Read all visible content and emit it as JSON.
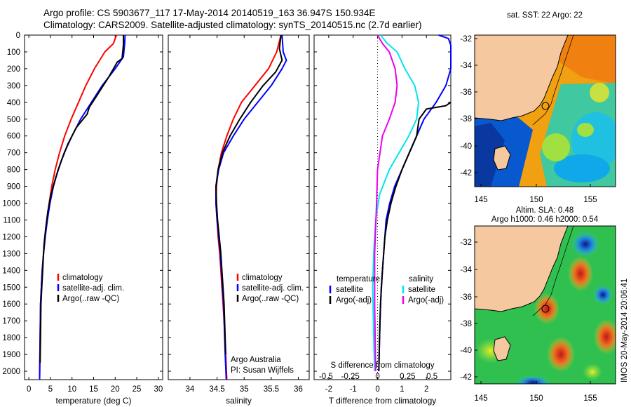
{
  "header": {
    "title_line1": "Argo profile: CS 5903677_117 17-May-2014 20140519_163 36.947S 150.934E",
    "title_line2": "Climatology: CARS2009. Satellite-adjusted climatology: synTS_20140515.nc (2.7d earlier)"
  },
  "colors": {
    "red": "#ff0000",
    "blue": "#0000ff",
    "black": "#000000",
    "cyan": "#00e5ee",
    "magenta": "#ee00ee",
    "land": "#f5c8a0"
  },
  "chart_data": [
    {
      "type": "line",
      "name": "temperature",
      "xlabel": "temperature (deg C)",
      "ylabel": "",
      "xlim": [
        -1,
        31
      ],
      "ylim": [
        2050,
        0
      ],
      "xticks": [
        "0",
        "5",
        "10",
        "15",
        "20",
        "25",
        "30"
      ],
      "yticks": [
        "0",
        "100",
        "200",
        "300",
        "400",
        "500",
        "600",
        "700",
        "800",
        "900",
        "1000",
        "1100",
        "1200",
        "1300",
        "1400",
        "1500",
        "1600",
        "1700",
        "1800",
        "1900",
        "2000"
      ],
      "legend": [
        "climatology",
        "satellite-adj. clim.",
        "Argo(..raw -QC)"
      ],
      "series": [
        {
          "name": "climatology",
          "color": "red",
          "x": [
            20.3,
            19.6,
            17.6,
            15.2,
            13.2,
            11.5,
            9.8,
            8.3,
            7.1,
            6.1,
            5.3,
            4.7,
            4.2,
            3.8,
            3.4,
            3.1,
            2.9,
            2.7,
            2.6,
            2.5
          ],
          "y": [
            0,
            50,
            100,
            200,
            300,
            400,
            500,
            600,
            700,
            800,
            900,
            1000,
            1100,
            1200,
            1300,
            1400,
            1500,
            1600,
            1800,
            2050
          ]
        },
        {
          "name": "satellite-adj. clim.",
          "color": "blue",
          "x": [
            22.3,
            22.2,
            21.9,
            20.0,
            17.0,
            14.5,
            12.0,
            10.0,
            8.2,
            6.8,
            5.7,
            4.9,
            4.3,
            3.8,
            3.4,
            3.1,
            2.9,
            2.7,
            2.6,
            2.5
          ],
          "y": [
            0,
            50,
            130,
            200,
            300,
            400,
            500,
            600,
            700,
            800,
            900,
            1000,
            1100,
            1200,
            1300,
            1400,
            1500,
            1600,
            1800,
            2050
          ]
        },
        {
          "name": "Argo",
          "color": "black",
          "x": [
            21.9,
            21.9,
            21.6,
            20.5,
            18.5,
            16.0,
            14.0,
            13.5,
            11.0,
            9.0,
            7.5,
            6.2,
            5.1,
            4.4,
            3.9,
            3.5,
            3.2,
            3.0,
            2.8,
            2.7,
            2.6
          ],
          "y": [
            0,
            60,
            140,
            160,
            250,
            350,
            430,
            470,
            550,
            650,
            750,
            850,
            950,
            1050,
            1150,
            1250,
            1400,
            1500,
            1600,
            1800,
            1950
          ]
        }
      ]
    },
    {
      "type": "line",
      "name": "salinity",
      "xlabel": "salinity",
      "xlim": [
        33.6,
        36.2
      ],
      "ylim": [
        2050,
        0
      ],
      "xticks": [
        "34",
        "34.5",
        "35",
        "35.5",
        "36"
      ],
      "legend": [
        "climatology",
        "satellite-adj. clim.",
        "Argo(..raw -QC)"
      ],
      "annotation": [
        "Argo Australia",
        "PI: Susan Wijffels"
      ],
      "series": [
        {
          "name": "climatology",
          "color": "red",
          "x": [
            35.68,
            35.6,
            35.45,
            35.2,
            34.95,
            34.8,
            34.68,
            34.58,
            34.52,
            34.49,
            34.48,
            34.5,
            34.52,
            34.55,
            34.57,
            34.59,
            34.61,
            34.63,
            34.66,
            34.68
          ],
          "y": [
            0,
            100,
            200,
            300,
            400,
            500,
            600,
            700,
            800,
            900,
            1000,
            1100,
            1200,
            1300,
            1400,
            1500,
            1600,
            1700,
            1900,
            2050
          ]
        },
        {
          "name": "satellite-adj. clim.",
          "color": "blue",
          "x": [
            35.7,
            35.72,
            35.78,
            35.7,
            35.5,
            35.25,
            35.0,
            34.8,
            34.62,
            34.53,
            34.48,
            34.48,
            34.5,
            34.53,
            34.56,
            34.58,
            34.6,
            34.62,
            34.65,
            34.67
          ],
          "y": [
            0,
            100,
            150,
            200,
            300,
            400,
            500,
            600,
            700,
            800,
            900,
            1000,
            1100,
            1200,
            1300,
            1400,
            1500,
            1600,
            1900,
            2050
          ]
        },
        {
          "name": "Argo",
          "color": "black",
          "x": [
            35.68,
            35.65,
            35.7,
            35.58,
            35.35,
            35.12,
            34.92,
            34.74,
            34.6,
            34.52,
            34.48,
            34.49,
            34.51,
            34.54,
            34.57,
            34.59,
            34.61,
            34.63,
            34.66
          ],
          "y": [
            0,
            80,
            150,
            220,
            300,
            400,
            500,
            600,
            700,
            800,
            900,
            1000,
            1100,
            1200,
            1300,
            1400,
            1500,
            1600,
            1900
          ]
        }
      ]
    },
    {
      "type": "line",
      "name": "difference",
      "xlabel": "T difference from climatology",
      "xlabel_top": "S difference from climatology",
      "xlim": [
        -2.6,
        3
      ],
      "ylim": [
        2050,
        0
      ],
      "xticks": [
        "-2",
        "-1",
        "0",
        "1",
        "2"
      ],
      "xticks_s": [
        "-0.5",
        "-0.25",
        "0",
        "0.25",
        "0.5"
      ],
      "legend_temperature": {
        "title": "temperature",
        "items": [
          "satellite",
          "Argo(-adj)"
        ]
      },
      "legend_salinity": {
        "title": "salinity",
        "items": [
          "satellite",
          "Argo(-adj)"
        ]
      },
      "series": [
        {
          "name": "T satellite",
          "color": "blue",
          "x": [
            2.5,
            2.9,
            3.0,
            3.0,
            3.0,
            2.8,
            2.4,
            1.9,
            1.6,
            1.3,
            1.0,
            0.7,
            0.5,
            0.35,
            0.25,
            0.15,
            0.1,
            0.05
          ],
          "y": [
            0,
            20,
            60,
            100,
            200,
            300,
            400,
            500,
            600,
            700,
            800,
            900,
            1000,
            1100,
            1300,
            1500,
            1700,
            2000
          ]
        },
        {
          "name": "T Argo",
          "color": "black",
          "x": [
            3.0,
            2.8,
            2.0,
            1.7,
            1.6,
            1.3,
            1.0,
            0.75,
            0.55,
            0.4,
            0.3,
            0.2,
            0.12,
            0.08,
            0.05
          ],
          "y": [
            400,
            420,
            440,
            500,
            600,
            700,
            800,
            900,
            1000,
            1100,
            1200,
            1400,
            1600,
            1800,
            2000
          ]
        },
        {
          "name": "S satellite",
          "color": "cyan",
          "x": [
            0.03,
            0.1,
            0.2,
            0.28,
            0.38,
            0.42,
            0.4,
            0.32,
            0.22,
            0.12,
            0.02,
            -0.02,
            -0.04,
            -0.05,
            -0.04,
            -0.03
          ],
          "y": [
            0,
            50,
            100,
            200,
            300,
            400,
            500,
            600,
            700,
            800,
            950,
            1100,
            1300,
            1500,
            1800,
            2000
          ]
        },
        {
          "name": "S Argo",
          "color": "magenta",
          "x": [
            0.0,
            0.05,
            0.12,
            0.18,
            0.2,
            0.18,
            0.12,
            0.05,
            0.0,
            -0.01,
            -0.03,
            -0.03,
            -0.02
          ],
          "y": [
            0,
            50,
            100,
            200,
            300,
            400,
            500,
            600,
            800,
            1000,
            1300,
            1600,
            2000
          ]
        }
      ]
    }
  ],
  "maps": {
    "sst": {
      "title": "sat. SST: 22 Argo: 22",
      "yticks": [
        "-32",
        "-34",
        "-36",
        "-38",
        "-40",
        "-42"
      ],
      "xticks": [
        "145",
        "150",
        "155"
      ]
    },
    "sla": {
      "title1": "Altim. SLA: 0.48",
      "title2": "Argo h1000: 0.46 h2000: 0.54",
      "yticks": [
        "-32",
        "-34",
        "-36",
        "-38",
        "-40",
        "-42"
      ],
      "xticks": [
        "145",
        "150",
        "155"
      ]
    }
  },
  "footer": {
    "stamp": "IMOS 20-May-2014 20:06:41"
  }
}
